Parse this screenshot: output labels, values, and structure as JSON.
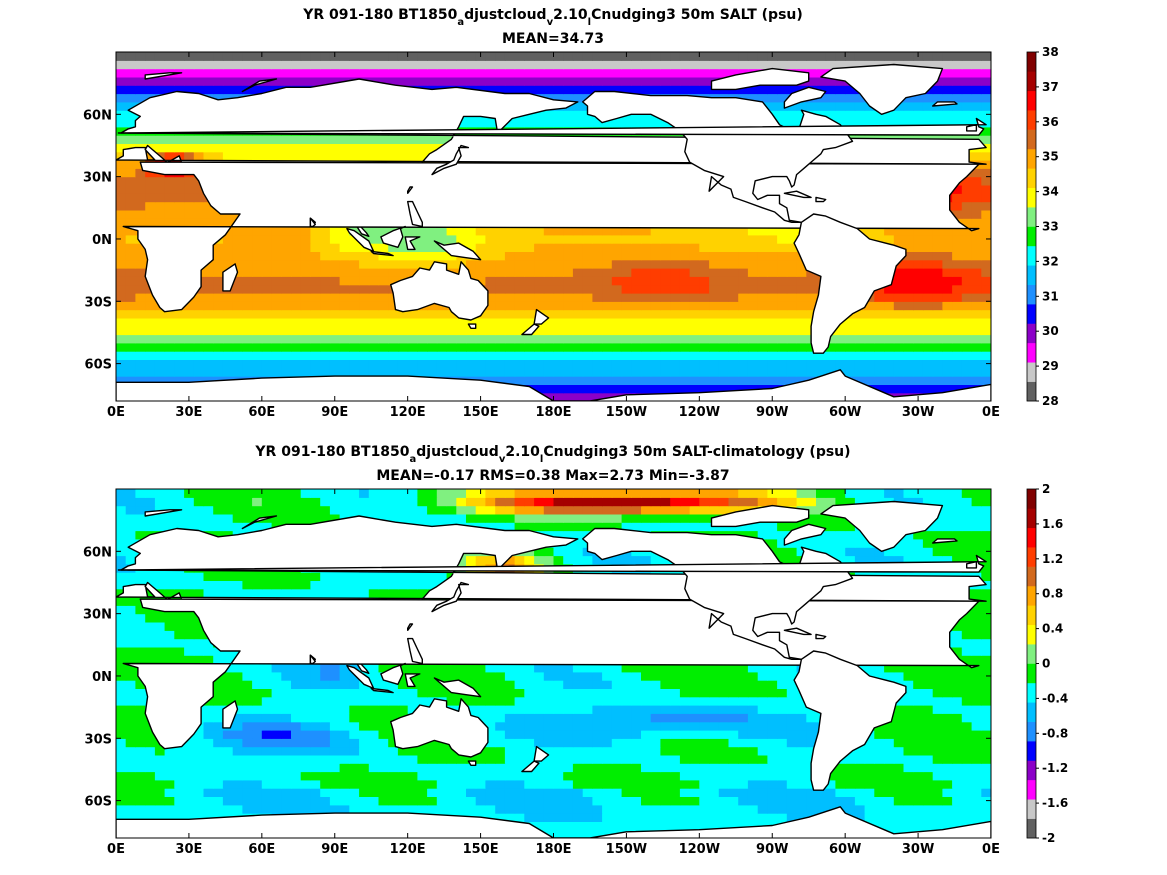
{
  "chart_data": [
    {
      "type": "heatmap",
      "title_parts": [
        {
          "t": "YR 091-180 BT1850"
        },
        {
          "t": "a",
          "sub": true
        },
        {
          "t": "djustcloud"
        },
        {
          "t": "v",
          "sub": true
        },
        {
          "t": "2.10"
        },
        {
          "t": "l",
          "sub": true
        },
        {
          "t": "Cnudging3 50m SALT (psu)"
        }
      ],
      "subtitle": "MEAN=34.73",
      "x_ticks": [
        "0E",
        "30E",
        "60E",
        "90E",
        "120E",
        "150E",
        "180E",
        "150W",
        "120W",
        "90W",
        "60W",
        "30W",
        "0E"
      ],
      "y_ticks": [
        {
          "lat": 60,
          "label": "60N"
        },
        {
          "lat": 30,
          "label": "30N"
        },
        {
          "lat": 0,
          "label": "0N"
        },
        {
          "lat": -30,
          "label": "30S"
        },
        {
          "lat": -60,
          "label": "60S"
        }
      ],
      "lat_range": [
        -78,
        90
      ],
      "lon_range": [
        0,
        360
      ],
      "colorbar": {
        "ticks": [
          "38",
          "37",
          "36",
          "35",
          "34",
          "33",
          "32",
          "31",
          "30",
          "29",
          "28"
        ],
        "colors": [
          "#616161",
          "#c8c8c8",
          "#ff00ff",
          "#8c00c8",
          "#0000ff",
          "#1e90ff",
          "#00bfff",
          "#00ffff",
          "#00ee00",
          "#80f080",
          "#ffff00",
          "#ffd200",
          "#ffa500",
          "#d2691e",
          "#ff3d00",
          "#ff0000",
          "#a50000",
          "#800000"
        ],
        "min": 28,
        "max": 38
      }
    },
    {
      "type": "heatmap",
      "title_parts": [
        {
          "t": "YR 091-180 BT1850"
        },
        {
          "t": "a",
          "sub": true
        },
        {
          "t": "djustcloud"
        },
        {
          "t": "v",
          "sub": true
        },
        {
          "t": "2.10"
        },
        {
          "t": "l",
          "sub": true
        },
        {
          "t": "Cnudging3 50m SALT-climatology (psu)"
        }
      ],
      "subtitle": "MEAN=-0.17   RMS=0.38   Max=2.73   Min=-3.87",
      "x_ticks": [
        "0E",
        "30E",
        "60E",
        "90E",
        "120E",
        "150E",
        "180E",
        "150W",
        "120W",
        "90W",
        "60W",
        "30W",
        "0E"
      ],
      "y_ticks": [
        {
          "lat": 60,
          "label": "60N"
        },
        {
          "lat": 30,
          "label": "30N"
        },
        {
          "lat": 0,
          "label": "0N"
        },
        {
          "lat": -30,
          "label": "30S"
        },
        {
          "lat": -60,
          "label": "60S"
        }
      ],
      "lat_range": [
        -78,
        90
      ],
      "lon_range": [
        0,
        360
      ],
      "colorbar": {
        "ticks": [
          "2",
          "1.6",
          "1.2",
          "0.8",
          "0.4",
          "0",
          "-0.4",
          "-0.8",
          "-1.2",
          "-1.6",
          "-2"
        ],
        "colors": [
          "#616161",
          "#c8c8c8",
          "#ff00ff",
          "#8c00c8",
          "#0000ff",
          "#1e90ff",
          "#00bfff",
          "#00ffff",
          "#00ee00",
          "#80f080",
          "#ffff00",
          "#ffd200",
          "#ffa500",
          "#d2691e",
          "#ff3d00",
          "#ff0000",
          "#a50000",
          "#800000"
        ],
        "min": -2,
        "max": 2
      }
    }
  ]
}
